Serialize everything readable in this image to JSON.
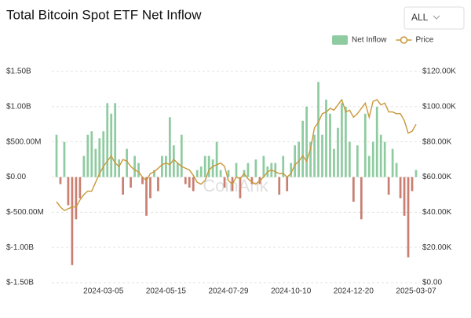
{
  "chart_data": {
    "type": "bar",
    "title": "Total Bitcoin Spot ETF Net Inflow",
    "range_selector": "ALL",
    "watermark": "CoinAnk",
    "categories": [
      null,
      null,
      null,
      null,
      null,
      null,
      null,
      null,
      null,
      null,
      null,
      null,
      "2024-03-05",
      null,
      null,
      null,
      null,
      null,
      null,
      null,
      null,
      null,
      null,
      null,
      null,
      null,
      null,
      null,
      "2024-05-15",
      null,
      null,
      null,
      null,
      null,
      null,
      null,
      null,
      null,
      null,
      null,
      null,
      null,
      null,
      null,
      "2024-07-29",
      null,
      null,
      null,
      null,
      null,
      null,
      null,
      null,
      null,
      null,
      null,
      null,
      null,
      null,
      null,
      "2024-10-10",
      null,
      null,
      null,
      null,
      null,
      null,
      null,
      null,
      null,
      null,
      null,
      null,
      null,
      null,
      null,
      "2024-12-20",
      null,
      null,
      null,
      null,
      null,
      null,
      null,
      null,
      null,
      null,
      null,
      null,
      null,
      null,
      null,
      "2025-03-07"
    ],
    "series": [
      {
        "name": "Net Inflow",
        "type": "bar",
        "color": "#8fcba0",
        "negative_color": "#c98072",
        "values": [
          600000000.0,
          -100000000.0,
          500000000.0,
          -400000000.0,
          -1250000000.0,
          -600000000.0,
          -300000000.0,
          300000000.0,
          600000000.0,
          650000000.0,
          400000000.0,
          550000000.0,
          650000000.0,
          1050000000.0,
          900000000.0,
          1050000000.0,
          250000000.0,
          -250000000.0,
          400000000.0,
          -150000000.0,
          300000000.0,
          200000000.0,
          -100000000.0,
          -550000000.0,
          -300000000.0,
          100000000.0,
          -200000000.0,
          300000000.0,
          300000000.0,
          850000000.0,
          450000000.0,
          200000000.0,
          600000000.0,
          -100000000.0,
          -150000000.0,
          -200000000.0,
          100000000.0,
          150000000.0,
          300000000.0,
          300000000.0,
          250000000.0,
          500000000.0,
          100000000.0,
          -150000000.0,
          100000000.0,
          -200000000.0,
          200000000.0,
          -300000000.0,
          100000000.0,
          200000000.0,
          -100000000.0,
          250000000.0,
          -100000000.0,
          300000000.0,
          150000000.0,
          200000000.0,
          200000000.0,
          -250000000.0,
          300000000.0,
          -200000000.0,
          200000000.0,
          450000000.0,
          500000000.0,
          800000000.0,
          1000000000.0,
          500000000.0,
          600000000.0,
          1350000000.0,
          600000000.0,
          1100000000.0,
          900000000.0,
          400000000.0,
          700000000.0,
          1050000000.0,
          1000000000.0,
          500000000.0,
          -350000000.0,
          450000000.0,
          -600000000.0,
          900000000.0,
          300000000.0,
          500000000.0,
          1000000000.0,
          600000000.0,
          500000000.0,
          -250000000.0,
          400000000.0,
          200000000.0,
          -300000000.0,
          -550000000.0,
          -1140000000.0,
          -200000000.0,
          100000000.0
        ]
      },
      {
        "name": "Price",
        "type": "line",
        "axis": "y2",
        "color": "#c9973a",
        "values": [
          46000,
          43000,
          41000,
          42000,
          43000,
          43000,
          47000,
          50000,
          52000,
          52000,
          57000,
          62000,
          66000,
          69000,
          72000,
          68000,
          66000,
          70000,
          69000,
          66000,
          64000,
          63000,
          60000,
          58000,
          62000,
          63000,
          65000,
          67000,
          68000,
          67000,
          70000,
          68000,
          66000,
          65000,
          64000,
          61000,
          57000,
          56000,
          58000,
          64000,
          66000,
          67000,
          68000,
          66000,
          58000,
          56000,
          60000,
          59000,
          62000,
          59000,
          57000,
          56000,
          58000,
          60000,
          63000,
          64000,
          63000,
          62000,
          62000,
          60000,
          62000,
          67000,
          69000,
          72000,
          69000,
          76000,
          88000,
          91000,
          96000,
          97000,
          99000,
          98000,
          101000,
          104000,
          97000,
          98000,
          94000,
          96000,
          99000,
          102000,
          94000,
          103000,
          104000,
          101000,
          102000,
          97000,
          97000,
          96000,
          96000,
          92000,
          85000,
          86000,
          90000
        ]
      }
    ],
    "ylim": [
      -1500000000.0,
      1500000000.0
    ],
    "yticks": [
      {
        "value": 1500000000.0,
        "label": "$1.50B"
      },
      {
        "value": 1000000000.0,
        "label": "$1.00B"
      },
      {
        "value": 500000000.0,
        "label": "$500.00M"
      },
      {
        "value": 0,
        "label": "$0.00"
      },
      {
        "value": -500000000.0,
        "label": "$-500.00M"
      },
      {
        "value": -1000000000.0,
        "label": "$-1.00B"
      },
      {
        "value": -1500000000.0,
        "label": "$-1.50B"
      }
    ],
    "y2lim": [
      0,
      120000
    ],
    "y2ticks": [
      {
        "value": 120000,
        "label": "$120.00K"
      },
      {
        "value": 100000,
        "label": "$100.00K"
      },
      {
        "value": 80000,
        "label": "$80.00K"
      },
      {
        "value": 60000,
        "label": "$60.00K"
      },
      {
        "value": 40000,
        "label": "$40.00K"
      },
      {
        "value": 20000,
        "label": "$20.00K"
      },
      {
        "value": 0,
        "label": "$0.00"
      }
    ],
    "grid": true
  }
}
